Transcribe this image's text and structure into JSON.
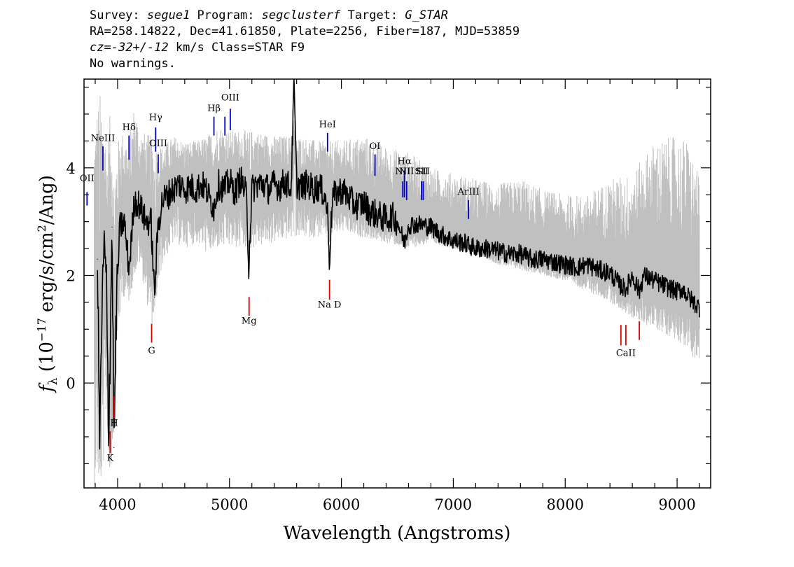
{
  "header": {
    "line1": {
      "p1": "Survey: ",
      "survey": "segue1",
      "p2": " Program: ",
      "program": "segclusterf",
      "p3": " Target: ",
      "target": "G_STAR"
    },
    "line2": "RA=258.14822, Dec=41.61850, Plate=2256, Fiber=187, MJD=53859",
    "line3": {
      "cz": "cz",
      "eq": "=",
      "val": "-32+/-12",
      "rest": " km/s Class=STAR F9"
    },
    "line4": "No warnings."
  },
  "chart_data": {
    "type": "line",
    "xlabel": "Wavelength (Angstroms)",
    "ylabel": "f_λ (10^-17 erg/s/cm^2/Ang)",
    "xlim": [
      3700,
      9300
    ],
    "ylim": [
      -1.95,
      5.65
    ],
    "x_ticks": [
      4000,
      5000,
      6000,
      7000,
      8000,
      9000
    ],
    "y_ticks": [
      0,
      2,
      4
    ],
    "grid": false,
    "series": [
      {
        "role": "flux",
        "color": "#000000",
        "x": [
          3820,
          3840,
          3860,
          3880,
          3900,
          3920,
          3935,
          3950,
          3968,
          3990,
          4020,
          4060,
          4102,
          4150,
          4200,
          4250,
          4300,
          4330,
          4360,
          4400,
          4450,
          4500,
          4550,
          4600,
          4650,
          4700,
          4750,
          4800,
          4861,
          4900,
          4950,
          5000,
          5050,
          5100,
          5150,
          5172,
          5200,
          5250,
          5300,
          5350,
          5400,
          5450,
          5500,
          5550,
          5577,
          5600,
          5650,
          5700,
          5750,
          5800,
          5850,
          5875,
          5893,
          5920,
          5950,
          6000,
          6050,
          6100,
          6150,
          6200,
          6250,
          6300,
          6350,
          6400,
          6450,
          6500,
          6563,
          6600,
          6650,
          6700,
          6800,
          6900,
          7000,
          7100,
          7200,
          7300,
          7400,
          7500,
          7600,
          7700,
          7800,
          7900,
          8000,
          8100,
          8200,
          8300,
          8400,
          8498,
          8542,
          8600,
          8662,
          8700,
          8800,
          8900,
          9000,
          9050,
          9100,
          9150,
          9200
        ],
        "y": [
          2.3,
          -1.1,
          1.3,
          2.6,
          1.8,
          -0.9,
          0.8,
          2.9,
          -1.2,
          1.5,
          2.9,
          3.0,
          2.1,
          3.4,
          3.3,
          3.0,
          3.0,
          1.6,
          2.9,
          3.4,
          3.5,
          3.6,
          3.7,
          3.6,
          3.65,
          3.6,
          3.7,
          3.55,
          3.25,
          3.7,
          3.6,
          3.75,
          3.55,
          3.8,
          3.5,
          2.2,
          3.6,
          3.7,
          3.7,
          3.6,
          3.7,
          3.65,
          3.75,
          3.6,
          5.55,
          3.7,
          3.65,
          3.7,
          3.6,
          3.65,
          3.5,
          3.2,
          2.3,
          3.45,
          3.5,
          3.6,
          3.5,
          3.35,
          3.3,
          3.35,
          3.2,
          3.15,
          3.1,
          3.05,
          3.1,
          3.0,
          2.6,
          2.95,
          2.95,
          2.95,
          2.9,
          2.75,
          2.65,
          2.6,
          2.5,
          2.5,
          2.45,
          2.4,
          2.4,
          2.3,
          2.3,
          2.25,
          2.2,
          2.15,
          2.2,
          2.1,
          2.05,
          1.8,
          1.75,
          2.0,
          1.7,
          2.0,
          1.9,
          1.8,
          1.7,
          1.75,
          1.6,
          1.5,
          1.4
        ]
      },
      {
        "role": "flux-error-envelope",
        "color": "#c0c0c0",
        "x": [
          3790,
          3820,
          3850,
          3880,
          3900,
          3930,
          3960,
          4000,
          4050,
          4100,
          4150,
          4200,
          4300,
          4400,
          4500,
          4600,
          4700,
          4800,
          4900,
          5000,
          5200,
          5400,
          5600,
          5800,
          6000,
          6200,
          6400,
          6600,
          6800,
          7000,
          7200,
          7400,
          7600,
          7800,
          8000,
          8200,
          8400,
          8600,
          8800,
          9000,
          9100,
          9200
        ],
        "ylow": [
          -1.9,
          -1.9,
          -1.9,
          -1.5,
          -0.5,
          -1.9,
          -1.2,
          0.9,
          1.6,
          1.5,
          2.0,
          2.2,
          1.0,
          2.2,
          2.6,
          2.5,
          2.6,
          2.4,
          2.5,
          2.5,
          2.5,
          2.6,
          2.7,
          2.7,
          2.8,
          2.7,
          2.6,
          2.5,
          2.6,
          2.5,
          2.4,
          2.2,
          2.1,
          2.0,
          1.9,
          1.7,
          1.5,
          1.2,
          1.0,
          0.8,
          0.6,
          0.3
        ],
        "yhigh": [
          4.5,
          5.2,
          5.5,
          4.8,
          4.6,
          5.0,
          4.3,
          4.5,
          4.7,
          4.6,
          5.2,
          4.7,
          4.6,
          4.4,
          4.6,
          4.5,
          4.5,
          4.6,
          4.8,
          4.7,
          4.7,
          4.6,
          4.6,
          4.5,
          4.5,
          4.6,
          4.4,
          4.3,
          4.0,
          3.9,
          3.8,
          3.7,
          3.8,
          3.6,
          3.5,
          3.5,
          3.8,
          3.9,
          4.5,
          4.6,
          4.5,
          3.8
        ]
      }
    ],
    "emission_lines": [
      {
        "name": "OII",
        "wl": 3727,
        "y0": 3.3,
        "y1": 3.55,
        "label_y": 3.75
      },
      {
        "name": "NeIII",
        "wl": 3869,
        "y0": 3.95,
        "y1": 4.4,
        "label_y": 4.5
      },
      {
        "name": "Hδ",
        "wl": 4102,
        "y0": 4.15,
        "y1": 4.6,
        "label_y": 4.7
      },
      {
        "name": "Hγ",
        "wl": 4340,
        "y0": 4.3,
        "y1": 4.75,
        "label_y": 4.88
      },
      {
        "name": "OIII",
        "wl": 4363,
        "y0": 3.9,
        "y1": 4.25,
        "label_y": 4.4
      },
      {
        "name": "Hβ",
        "wl": 4861,
        "y0": 4.6,
        "y1": 4.95,
        "label_y": 5.05
      },
      {
        "name": "",
        "wl": 4959,
        "y0": 4.6,
        "y1": 4.95,
        "label_y": 5.0
      },
      {
        "name": "OIII",
        "wl": 5007,
        "y0": 4.7,
        "y1": 5.1,
        "label_y": 5.25
      },
      {
        "name": "HeI",
        "wl": 5876,
        "y0": 4.3,
        "y1": 4.65,
        "label_y": 4.75
      },
      {
        "name": "OI",
        "wl": 6300,
        "y0": 3.85,
        "y1": 4.25,
        "label_y": 4.35
      },
      {
        "name": "NII",
        "wl": 6548,
        "y0": 3.45,
        "y1": 3.75,
        "label_y": 3.88
      },
      {
        "name": "Hα",
        "wl": 6563,
        "y0": 3.45,
        "y1": 3.95,
        "label_y": 4.07
      },
      {
        "name": "NII",
        "wl": 6583,
        "y0": 3.4,
        "y1": 3.75,
        "label_y": 3.88
      },
      {
        "name": "SII",
        "wl": 6716,
        "y0": 3.4,
        "y1": 3.75,
        "label_y": 3.88
      },
      {
        "name": "SII",
        "wl": 6731,
        "y0": 3.4,
        "y1": 3.75,
        "label_y": 3.88
      },
      {
        "name": "ArIII",
        "wl": 7136,
        "y0": 3.05,
        "y1": 3.4,
        "label_y": 3.5
      }
    ],
    "absorption_lines": [
      {
        "name": "K",
        "wl": 3934,
        "y0": -1.3,
        "y1": -0.9,
        "label_y": -1.45
      },
      {
        "name": "H",
        "wl": 3969,
        "y0": -0.65,
        "y1": -0.25,
        "label_y": -0.8
      },
      {
        "name": "G",
        "wl": 4304,
        "y0": 0.75,
        "y1": 1.1,
        "label_y": 0.55
      },
      {
        "name": "Mg",
        "wl": 5175,
        "y0": 1.25,
        "y1": 1.6,
        "label_y": 1.1
      },
      {
        "name": "Na D",
        "wl": 5894,
        "y0": 1.55,
        "y1": 1.92,
        "label_y": 1.4
      },
      {
        "name": "",
        "wl": 8498,
        "y0": 0.7,
        "y1": 1.08,
        "label_y": 0.5
      },
      {
        "name": "CaII",
        "wl": 8542,
        "y0": 0.7,
        "y1": 1.08,
        "label_y": 0.5
      },
      {
        "name": "",
        "wl": 8662,
        "y0": 0.8,
        "y1": 1.15,
        "label_y": 0.5
      }
    ],
    "colors": {
      "emission": "#0000cc",
      "absorption": "#dd0000",
      "flux": "#000000",
      "error": "#c0c0c0"
    }
  }
}
